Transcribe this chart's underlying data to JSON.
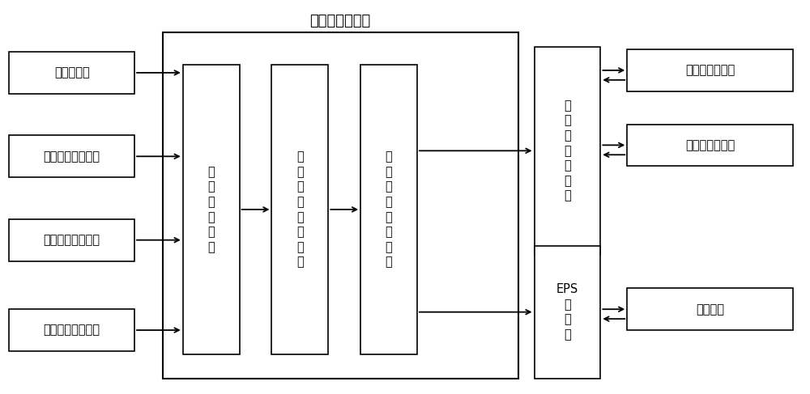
{
  "title": "转向集成控制器",
  "bg_color": "#ffffff",
  "box_color": "#ffffff",
  "box_edge": "#000000",
  "text_color": "#000000",
  "font_size": 11,
  "font_size_small": 10,
  "left_sensors": [
    {
      "label": "车速传感器",
      "row": 0
    },
    {
      "label": "转向盘转角传感器",
      "row": 1
    },
    {
      "label": "转向盘转矩传感器",
      "row": 2
    },
    {
      "label": "侧向加速度传感器",
      "row": 3
    }
  ],
  "inner_blocks": [
    {
      "label": "回\n正\n判\n断\n模\n块",
      "col": 0
    },
    {
      "label": "时\n变\n滑\n模\n控\n制\n模\n块",
      "col": 1
    },
    {
      "label": "转\n向\n集\n成\n控\n制\n模\n块",
      "col": 2
    }
  ],
  "right_top_block": {
    "label": "轮\n毂\n电\n机\n控\n制\n器"
  },
  "right_bottom_block": {
    "label": "EPS\n控\n制\n器"
  },
  "far_right_top": {
    "label": "左前轮轮毂电机"
  },
  "far_right_mid": {
    "label": "右前轮轮毂电机"
  },
  "far_right_bot": {
    "label": "助力电机"
  }
}
